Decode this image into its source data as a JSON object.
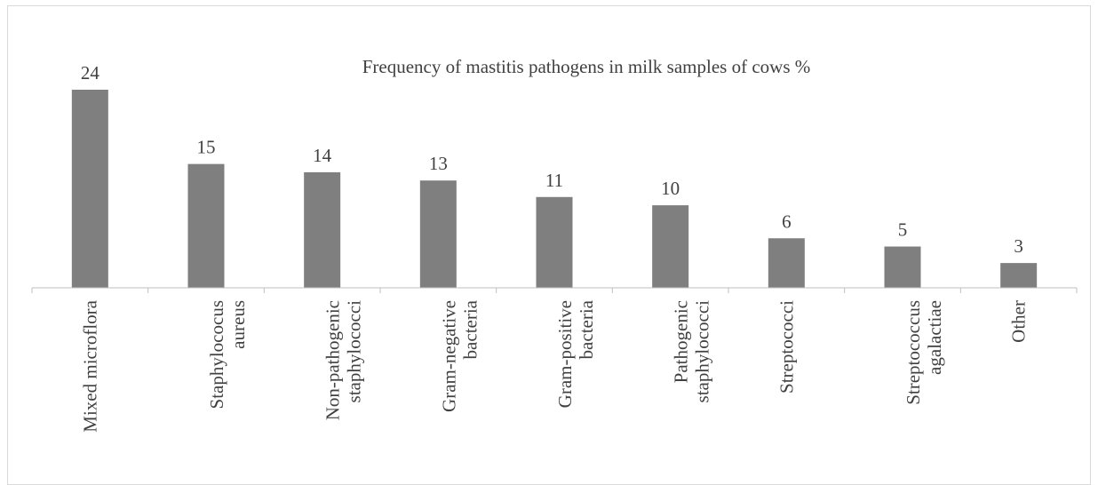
{
  "chart_data": {
    "type": "bar",
    "title": "Frequency of mastitis pathogens in milk samples of cows  %",
    "categories": [
      [
        "Mixed microflora"
      ],
      [
        "Staphylococus",
        "aureus"
      ],
      [
        "Non-pathogenic",
        "staphylococci"
      ],
      [
        "Gram-negative",
        "bacteria"
      ],
      [
        "Gram-positive",
        "bacteria"
      ],
      [
        "Pathogenic",
        "staphylococci"
      ],
      [
        "Streptococci"
      ],
      [
        "Streptococcus",
        "agalactiae"
      ],
      [
        "Other"
      ]
    ],
    "values": [
      24,
      15,
      14,
      13,
      11,
      10,
      6,
      5,
      3
    ],
    "ylim": [
      0,
      25
    ],
    "xlabel": "",
    "ylabel": "",
    "grid": false,
    "data_labels": true,
    "bar_color": "#7f7f7f",
    "axis_color": "#bfbfbf",
    "text_color": "#404040"
  }
}
